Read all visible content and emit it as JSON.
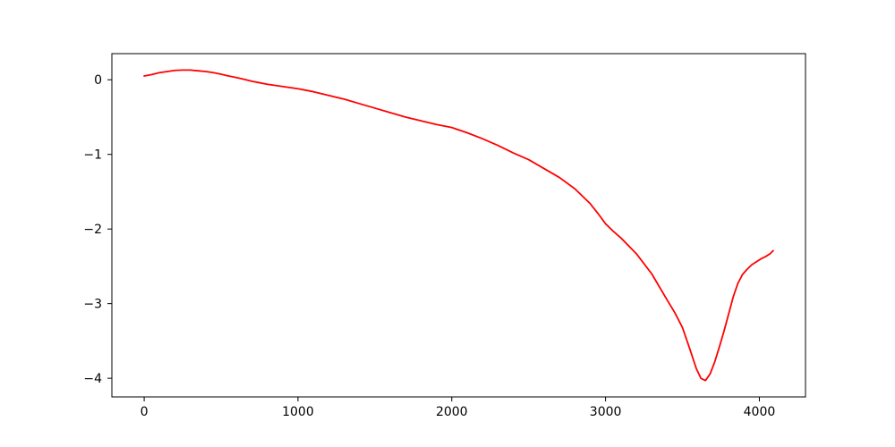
{
  "figure": {
    "background_color": "#ffffff",
    "spine_color": "#000000",
    "tick_color": "#000000"
  },
  "chart_data": {
    "type": "line",
    "title": "",
    "xlabel": "",
    "ylabel": "",
    "grid": false,
    "legend": false,
    "xlim": [
      -210,
      4300
    ],
    "ylim": [
      -4.25,
      0.35
    ],
    "xticks": [
      0,
      1000,
      2000,
      3000,
      4000
    ],
    "xtick_labels": [
      "0",
      "1000",
      "2000",
      "3000",
      "4000"
    ],
    "yticks": [
      0,
      -1,
      -2,
      -3,
      -4
    ],
    "ytick_labels": [
      "0",
      "−1",
      "−2",
      "−3",
      "−4"
    ],
    "series": [
      {
        "color": "#ff0000",
        "points": [
          [
            0,
            0.05
          ],
          [
            50,
            0.07
          ],
          [
            100,
            0.095
          ],
          [
            150,
            0.11
          ],
          [
            200,
            0.125
          ],
          [
            250,
            0.13
          ],
          [
            300,
            0.13
          ],
          [
            350,
            0.12
          ],
          [
            400,
            0.11
          ],
          [
            450,
            0.095
          ],
          [
            500,
            0.075
          ],
          [
            550,
            0.05
          ],
          [
            600,
            0.03
          ],
          [
            650,
            0.005
          ],
          [
            700,
            -0.02
          ],
          [
            750,
            -0.04
          ],
          [
            800,
            -0.06
          ],
          [
            850,
            -0.075
          ],
          [
            900,
            -0.09
          ],
          [
            950,
            -0.105
          ],
          [
            1000,
            -0.12
          ],
          [
            1100,
            -0.16
          ],
          [
            1200,
            -0.21
          ],
          [
            1300,
            -0.26
          ],
          [
            1400,
            -0.32
          ],
          [
            1500,
            -0.38
          ],
          [
            1600,
            -0.44
          ],
          [
            1700,
            -0.5
          ],
          [
            1800,
            -0.55
          ],
          [
            1900,
            -0.6
          ],
          [
            2000,
            -0.64
          ],
          [
            2100,
            -0.71
          ],
          [
            2200,
            -0.79
          ],
          [
            2300,
            -0.88
          ],
          [
            2400,
            -0.98
          ],
          [
            2500,
            -1.07
          ],
          [
            2600,
            -1.19
          ],
          [
            2700,
            -1.31
          ],
          [
            2800,
            -1.46
          ],
          [
            2900,
            -1.66
          ],
          [
            2950,
            -1.79
          ],
          [
            3000,
            -1.93
          ],
          [
            3050,
            -2.03
          ],
          [
            3100,
            -2.12
          ],
          [
            3200,
            -2.33
          ],
          [
            3300,
            -2.6
          ],
          [
            3400,
            -2.95
          ],
          [
            3450,
            -3.12
          ],
          [
            3500,
            -3.32
          ],
          [
            3550,
            -3.62
          ],
          [
            3590,
            -3.87
          ],
          [
            3620,
            -4.0
          ],
          [
            3650,
            -4.03
          ],
          [
            3680,
            -3.94
          ],
          [
            3710,
            -3.78
          ],
          [
            3740,
            -3.58
          ],
          [
            3770,
            -3.37
          ],
          [
            3800,
            -3.14
          ],
          [
            3830,
            -2.91
          ],
          [
            3860,
            -2.73
          ],
          [
            3890,
            -2.61
          ],
          [
            3920,
            -2.54
          ],
          [
            3950,
            -2.48
          ],
          [
            3980,
            -2.44
          ],
          [
            4010,
            -2.4
          ],
          [
            4040,
            -2.37
          ],
          [
            4070,
            -2.33
          ],
          [
            4090,
            -2.29
          ]
        ]
      }
    ]
  }
}
